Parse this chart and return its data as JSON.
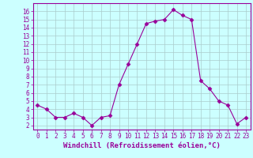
{
  "x": [
    0,
    1,
    2,
    3,
    4,
    5,
    6,
    7,
    8,
    9,
    10,
    11,
    12,
    13,
    14,
    15,
    16,
    17,
    18,
    19,
    20,
    21,
    22,
    23
  ],
  "y": [
    4.5,
    4.0,
    3.0,
    3.0,
    3.5,
    3.0,
    2.0,
    3.0,
    3.2,
    7.0,
    9.5,
    12.0,
    14.5,
    14.8,
    15.0,
    16.2,
    15.5,
    15.0,
    7.5,
    6.5,
    5.0,
    4.5,
    2.2,
    3.0
  ],
  "line_color": "#990099",
  "marker": "D",
  "marker_size": 2.5,
  "bg_color": "#ccffff",
  "grid_color": "#aacccc",
  "xlabel": "Windchill (Refroidissement éolien,°C)",
  "xlim": [
    -0.5,
    23.5
  ],
  "ylim": [
    1.5,
    17.0
  ],
  "yticks": [
    2,
    3,
    4,
    5,
    6,
    7,
    8,
    9,
    10,
    11,
    12,
    13,
    14,
    15,
    16
  ],
  "xticks": [
    0,
    1,
    2,
    3,
    4,
    5,
    6,
    7,
    8,
    9,
    10,
    11,
    12,
    13,
    14,
    15,
    16,
    17,
    18,
    19,
    20,
    21,
    22,
    23
  ],
  "tick_color": "#990099",
  "label_color": "#990099",
  "spine_color": "#990099",
  "font_size_ticks": 5.5,
  "font_size_xlabel": 6.5
}
